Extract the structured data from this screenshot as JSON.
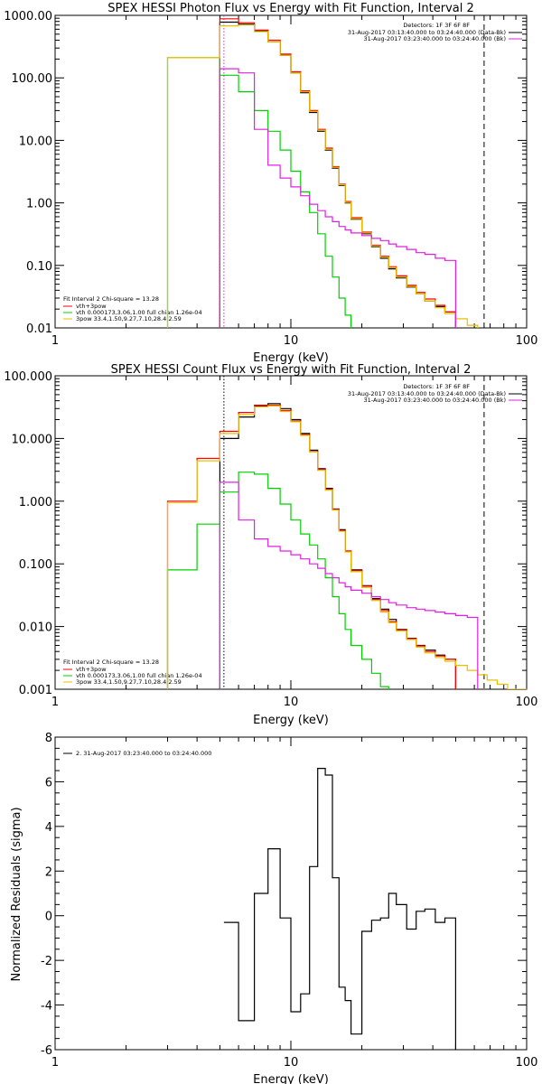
{
  "colors": {
    "data": "#000000",
    "total": "#ff0000",
    "thermal": "#00d000",
    "powerlaw": "#e8c000",
    "background": "#e020e0"
  },
  "chart_data": [
    {
      "type": "line",
      "title": "SPEX HESSI Photon Flux vs Energy with Fit Function, Interval 2",
      "xlabel": "Energy (keV)",
      "ylabel": "",
      "xscale": "log",
      "yscale": "log",
      "xlim": [
        1,
        100
      ],
      "ylim": [
        0.01,
        1000
      ],
      "xticks": [
        {
          "v": 1,
          "label": "1"
        },
        {
          "v": 10,
          "label": "10"
        },
        {
          "v": 100,
          "label": "100"
        }
      ],
      "yticks": [
        {
          "v": 1000,
          "label": "1000.00"
        },
        {
          "v": 100,
          "label": "100.00"
        },
        {
          "v": 10,
          "label": "10.00"
        },
        {
          "v": 1,
          "label": "1.00"
        },
        {
          "v": 0.1,
          "label": "0.10"
        },
        {
          "v": 0.01,
          "label": "0.01"
        }
      ],
      "vlines": [
        {
          "x": 5.2,
          "style": "dotted",
          "color": "#e020e0"
        },
        {
          "x": 66,
          "style": "dashed",
          "color": "#000000"
        }
      ],
      "edges": [
        3,
        4,
        5,
        6,
        7,
        8,
        9,
        10,
        11,
        12,
        13,
        14,
        15,
        16,
        17,
        18,
        20,
        22,
        24,
        26,
        28,
        31,
        34,
        37,
        41,
        45,
        50,
        56,
        62,
        68,
        75,
        83
      ],
      "series": [
        {
          "name": "data",
          "color": "#000000",
          "values": [
            null,
            null,
            780,
            720,
            560,
            380,
            230,
            120,
            58,
            28,
            14,
            7,
            3.6,
            1.9,
            1.0,
            0.55,
            0.32,
            0.2,
            0.13,
            0.088,
            0.063,
            0.045,
            0.035,
            0.027,
            0.022,
            0.018,
            null,
            null,
            null,
            null,
            null
          ]
        },
        {
          "name": "total",
          "color": "#ff0000",
          "values": [
            null,
            null,
            880,
            760,
            580,
            400,
            240,
            125,
            62,
            30,
            15,
            7.5,
            3.8,
            2.0,
            1.05,
            0.58,
            0.34,
            0.21,
            0.14,
            0.095,
            0.068,
            0.048,
            0.037,
            0.029,
            0.023,
            0.018,
            null,
            null,
            null,
            null,
            null
          ]
        },
        {
          "name": "thermal",
          "color": "#00d000",
          "values": [
            210,
            210,
            110,
            60,
            30,
            14,
            7,
            3.2,
            1.5,
            0.7,
            0.32,
            0.14,
            0.065,
            0.03,
            0.016,
            null,
            null,
            null,
            null,
            null,
            null,
            null,
            null,
            null,
            null,
            null,
            null,
            null,
            null,
            null,
            null
          ]
        },
        {
          "name": "powerlaw",
          "color": "#e8c000",
          "values": [
            210,
            210,
            680,
            700,
            550,
            380,
            230,
            120,
            60,
            29,
            14.5,
            7.2,
            3.7,
            1.95,
            1.02,
            0.56,
            0.33,
            0.205,
            0.135,
            0.092,
            0.065,
            0.046,
            0.035,
            0.027,
            0.021,
            0.017,
            0.014,
            0.011,
            0.009,
            null,
            null
          ]
        },
        {
          "name": "background",
          "color": "#e020e0",
          "values": [
            null,
            null,
            140,
            120,
            15,
            4,
            2.5,
            1.8,
            1.3,
            0.95,
            0.75,
            0.6,
            0.5,
            0.42,
            0.37,
            0.33,
            0.3,
            0.27,
            0.25,
            0.22,
            0.2,
            0.18,
            0.16,
            0.15,
            0.13,
            0.12,
            null,
            null,
            null,
            null,
            null
          ]
        }
      ],
      "detectors": "Detectors: 1F 3F 6F 8F",
      "legend_right": [
        "31-Aug-2017 03:13:40.000 to 03:24:40.000 (Data-Bk)",
        "31-Aug-2017 03:23:40.000 to 03:24:40.000 (Bk)"
      ],
      "legend_left": [
        "Fit Interval  2   Chi-square = 13.28",
        "vth+3pow",
        "vth 0.000173,3.06,1.00   full chian 1.26e-04",
        "3pow 33.4,1.50,9.27,7.10,28.4,2.59"
      ]
    },
    {
      "type": "line",
      "title": "SPEX HESSI Count Flux vs Energy with Fit Function, Interval 2",
      "xlabel": "Energy (keV)",
      "ylabel": "",
      "xscale": "log",
      "yscale": "log",
      "xlim": [
        1,
        100
      ],
      "ylim": [
        0.001,
        100
      ],
      "xticks": [
        {
          "v": 1,
          "label": "1"
        },
        {
          "v": 10,
          "label": "10"
        },
        {
          "v": 100,
          "label": "100"
        }
      ],
      "yticks": [
        {
          "v": 100,
          "label": "100.000"
        },
        {
          "v": 10,
          "label": "10.000"
        },
        {
          "v": 1,
          "label": "1.000"
        },
        {
          "v": 0.1,
          "label": "0.100"
        },
        {
          "v": 0.01,
          "label": "0.010"
        },
        {
          "v": 0.001,
          "label": "0.001"
        }
      ],
      "vlines": [
        {
          "x": 5.2,
          "style": "dotted",
          "color": "#000000"
        },
        {
          "x": 66,
          "style": "dashed",
          "color": "#000000"
        }
      ],
      "edges": [
        3,
        4,
        5,
        6,
        7,
        8,
        9,
        10,
        11,
        12,
        13,
        14,
        15,
        16,
        17,
        18,
        20,
        22,
        24,
        26,
        28,
        31,
        34,
        37,
        41,
        45,
        50,
        56,
        62,
        68,
        75,
        83,
        92,
        100
      ],
      "series": [
        {
          "name": "data",
          "color": "#000000",
          "values": [
            null,
            null,
            10,
            22,
            33,
            36,
            30,
            20,
            12,
            6.5,
            3.3,
            1.6,
            0.75,
            0.35,
            0.16,
            0.08,
            0.045,
            0.028,
            0.019,
            0.013,
            0.009,
            0.0065,
            0.005,
            0.0042,
            0.0035,
            0.003,
            null,
            null,
            null,
            null,
            null,
            null,
            null
          ]
        },
        {
          "name": "total",
          "color": "#ff0000",
          "values": [
            1,
            4.8,
            13,
            26,
            34,
            34,
            28,
            19,
            11.5,
            6.2,
            3.2,
            1.55,
            0.74,
            0.34,
            0.16,
            0.078,
            0.044,
            0.027,
            0.018,
            0.012,
            0.0088,
            0.0064,
            0.0049,
            0.004,
            0.0034,
            0.003,
            null,
            null,
            null,
            null,
            null,
            null,
            null
          ]
        },
        {
          "name": "thermal",
          "color": "#00d000",
          "values": [
            0.08,
            0.43,
            1.4,
            2.9,
            2.7,
            1.6,
            0.9,
            0.5,
            0.3,
            0.2,
            0.12,
            0.06,
            0.03,
            0.016,
            0.009,
            0.005,
            0.003,
            0.0018,
            0.0011,
            null,
            null,
            null,
            null,
            null,
            null,
            null,
            null,
            null,
            null,
            null,
            null,
            null,
            null
          ]
        },
        {
          "name": "powerlaw",
          "color": "#e8c000",
          "values": [
            0.95,
            4.4,
            12,
            24,
            32,
            33,
            27,
            18.5,
            11.2,
            6.1,
            3.1,
            1.5,
            0.72,
            0.33,
            0.155,
            0.075,
            0.042,
            0.026,
            0.017,
            0.0115,
            0.0085,
            0.0062,
            0.0047,
            0.0038,
            0.0032,
            0.0028,
            0.0024,
            0.002,
            0.0017,
            0.0014,
            0.0012,
            0.001,
            0.001
          ]
        },
        {
          "name": "background",
          "color": "#e020e0",
          "values": [
            null,
            null,
            2,
            0.5,
            0.25,
            0.19,
            0.16,
            0.14,
            0.12,
            0.1,
            0.085,
            0.07,
            0.06,
            0.05,
            0.043,
            0.038,
            0.034,
            0.03,
            0.027,
            0.024,
            0.022,
            0.02,
            0.019,
            0.018,
            0.017,
            0.016,
            0.015,
            0.014,
            null,
            null,
            null,
            null,
            null
          ]
        }
      ],
      "detectors": "Detectors: 1F 3F 6F 8F",
      "legend_right": [
        "31-Aug-2017 03:13:40.000 to 03:24:40.000 (Data-Bk)",
        "31-Aug-2017 03:23:40.000 to 03:24:40.000 (Bk)"
      ],
      "legend_left": [
        "Fit Interval  2   Chi-square = 13.28",
        "vth+3pow",
        "vth 0.000173,3.06,1.00   full chian 1.26e-04",
        "3pow 33.4,1.50,9.27,7.10,28.4,2.59"
      ]
    },
    {
      "type": "line",
      "title": "",
      "xlabel": "Energy (keV)",
      "ylabel": "Normalized Residuals (sigma)",
      "xscale": "log",
      "yscale": "linear",
      "xlim": [
        1,
        100
      ],
      "ylim": [
        -6,
        8
      ],
      "xticks": [
        {
          "v": 1,
          "label": "1"
        },
        {
          "v": 10,
          "label": "10"
        },
        {
          "v": 100,
          "label": "100"
        }
      ],
      "yticks": [
        {
          "v": 8,
          "label": "8"
        },
        {
          "v": 6,
          "label": "6"
        },
        {
          "v": 4,
          "label": "4"
        },
        {
          "v": 2,
          "label": "2"
        },
        {
          "v": 0,
          "label": "0"
        },
        {
          "v": -2,
          "label": "-2"
        },
        {
          "v": -4,
          "label": "-4"
        },
        {
          "v": -6,
          "label": "-6"
        }
      ],
      "edges": [
        5.2,
        6,
        7,
        8,
        9,
        10,
        11,
        12,
        13,
        14,
        15,
        16,
        17,
        18,
        20,
        22,
        24,
        26,
        28,
        31,
        34,
        37,
        41,
        45,
        50,
        56,
        62,
        68
      ],
      "series": [
        {
          "name": "2. 31-Aug-2017 03:23:40.000 to 03:24:40.000",
          "color": "#000000",
          "values": [
            -0.3,
            -4.7,
            1.0,
            3.0,
            -0.1,
            -4.3,
            -3.5,
            2.2,
            6.6,
            6.3,
            1.7,
            -3.2,
            -3.8,
            -5.3,
            -0.7,
            -0.2,
            -0.1,
            1.0,
            0.5,
            -0.6,
            0.2,
            0.3,
            -0.3,
            -0.1
          ]
        }
      ],
      "legend_label": "2. 31-Aug-2017 03:23:40.000 to 03:24:40.000"
    }
  ]
}
